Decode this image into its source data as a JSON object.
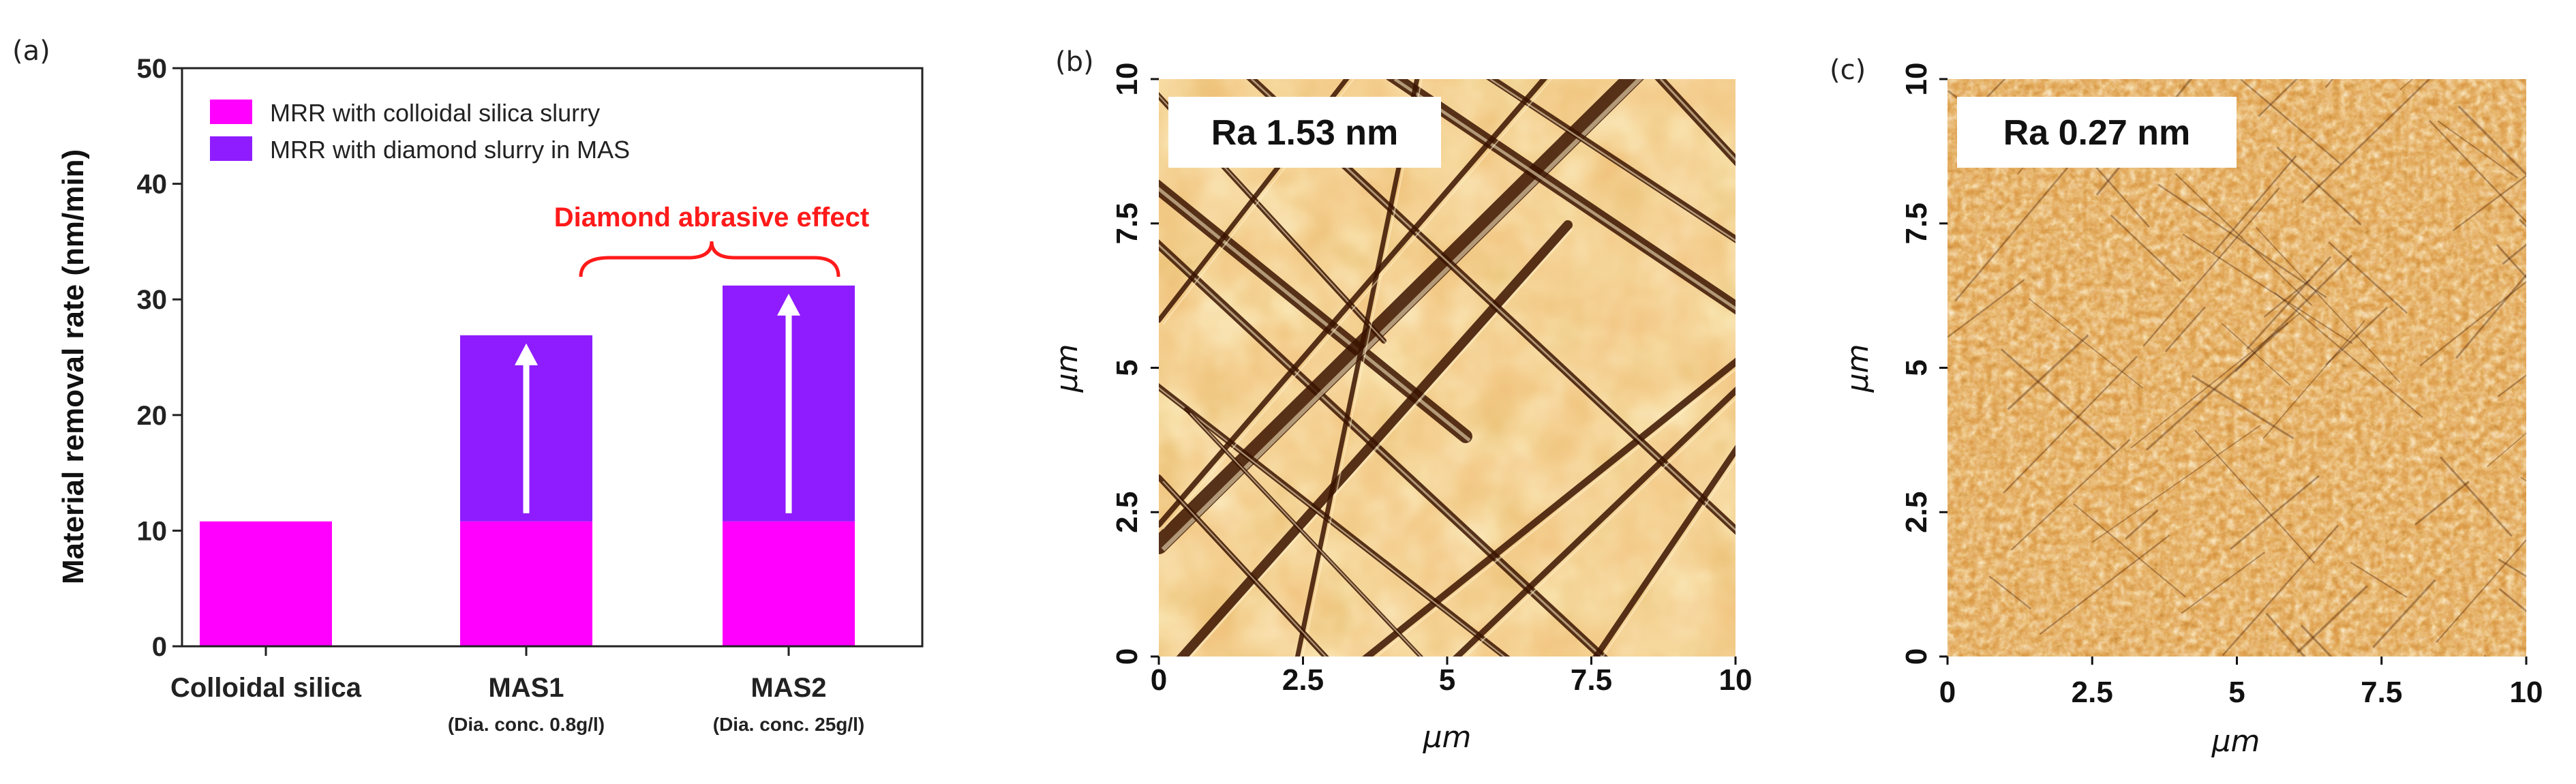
{
  "colors": {
    "silica": "#ff00ff",
    "diamond": "#8f1cff",
    "annotation": "#ff1a1a",
    "arrow": "#ffffff",
    "afm_light": "#fde9b8",
    "afm_mid": "#e79a3b",
    "afm_dark": "#3a1300"
  },
  "chart_data": [
    {
      "panel": "(a)",
      "type": "bar",
      "stacked": true,
      "categories": [
        "Colloidal silica",
        "MAS1",
        "MAS2"
      ],
      "category_sublabels": [
        "",
        "(Dia. conc. 0.8g/l)",
        "(Dia. conc. 25g/l)"
      ],
      "series": [
        {
          "name": "MRR with colloidal silica slurry",
          "values": [
            10.8,
            10.8,
            10.8
          ]
        },
        {
          "name": "MRR with diamond slurry in MAS",
          "values": [
            0,
            16.1,
            20.4
          ]
        }
      ],
      "ylabel": "Material removal rate (nm/min)",
      "xlabel": "",
      "ylim": [
        0,
        50
      ],
      "yticks": [
        "0",
        "10",
        "20",
        "30",
        "40",
        "50"
      ],
      "legend_position": "top-left",
      "annotation": "Diamond abrasive effect",
      "grid": false
    },
    {
      "panel": "(b)",
      "type": "heatmap",
      "title": "Ra 1.53 nm",
      "xlabel": "μm",
      "ylabel": "μm",
      "xlim": [
        0,
        10
      ],
      "ylim": [
        0,
        10
      ],
      "xticks": [
        "0",
        "2.5",
        "5",
        "7.5",
        "10"
      ],
      "yticks": [
        "0",
        "2.5",
        "5",
        "7.5",
        "10"
      ],
      "texture": "scratched"
    },
    {
      "panel": "(c)",
      "type": "heatmap",
      "title": "Ra 0.27 nm",
      "xlabel": "μm",
      "ylabel": "μm",
      "xlim": [
        0,
        10
      ],
      "ylim": [
        0,
        10
      ],
      "xticks": [
        "0",
        "2.5",
        "5",
        "7.5",
        "10"
      ],
      "yticks": [
        "0",
        "2.5",
        "5",
        "7.5",
        "10"
      ],
      "texture": "fine"
    }
  ]
}
